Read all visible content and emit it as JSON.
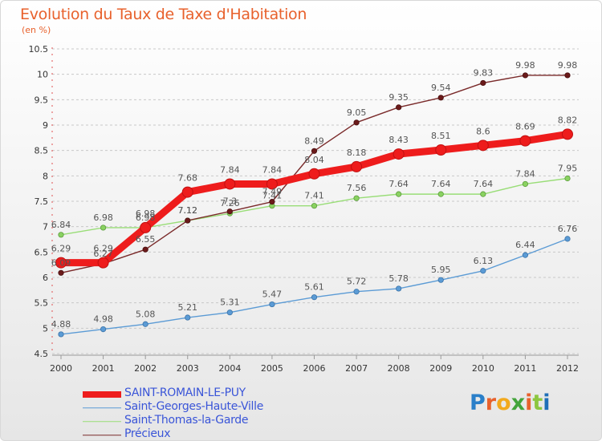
{
  "title": "Evolution du Taux de Taxe d'Habitation",
  "subtitle": "(en %)",
  "logo": {
    "text": "Proxiti",
    "letter_colors": [
      "#2a7fc9",
      "#e8612c",
      "#f2a91d",
      "#43a43b",
      "#e8612c",
      "#8cc63f",
      "#1f6fb8"
    ]
  },
  "chart_data": {
    "type": "line",
    "x": [
      "2000",
      "2001",
      "2002",
      "2003",
      "2004",
      "2005",
      "2006",
      "2007",
      "2008",
      "2009",
      "2010",
      "2011",
      "2012"
    ],
    "ylim": [
      4.5,
      10.5
    ],
    "yticks": [
      "4.5",
      "5",
      "5.5",
      "6",
      "6.5",
      "7",
      "7.5",
      "8",
      "8.5",
      "9",
      "9.5",
      "10",
      "10.5"
    ],
    "grid": "horizontal dashed",
    "legend_position": "bottom-left",
    "series": [
      {
        "name": "SAINT-ROMAIN-LE-PUY",
        "color": "#ee1c1c",
        "values": [
          6.29,
          6.29,
          6.98,
          7.68,
          7.84,
          7.84,
          8.04,
          8.18,
          8.43,
          8.51,
          8.6,
          8.69,
          8.82
        ],
        "labels": [
          "6.29",
          "6.29",
          "6.98",
          "7.68",
          "7.84",
          "7.84",
          "8.04",
          "8.18",
          "8.43",
          "8.51",
          "8.6",
          "8.69",
          "8.82"
        ]
      },
      {
        "name": "Saint-Georges-Haute-Ville",
        "color": "#5b9bd5",
        "values": [
          4.88,
          4.98,
          5.08,
          5.21,
          5.31,
          5.47,
          5.61,
          5.72,
          5.78,
          5.95,
          6.13,
          6.44,
          6.76
        ],
        "labels": [
          "4.88",
          "4.98",
          "5.08",
          "5.21",
          "5.31",
          "5.47",
          "5.61",
          "5.72",
          "5.78",
          "5.95",
          "6.13",
          "6.44",
          "6.76"
        ]
      },
      {
        "name": "Saint-Thomas-la-Garde",
        "color": "#99dd77",
        "values": [
          6.84,
          6.98,
          6.98,
          7.12,
          7.26,
          7.41,
          7.41,
          7.56,
          7.64,
          7.64,
          7.64,
          7.84,
          7.95
        ],
        "labels": [
          "6.84",
          "6.98",
          "6.98",
          "7.12",
          "7.26",
          "7.41",
          "7.41",
          "7.56",
          "7.64",
          "7.64",
          "7.64",
          "7.84",
          "7.95"
        ]
      },
      {
        "name": "Précieux",
        "color": "#7a2a2a",
        "values": [
          6.09,
          6.27,
          6.55,
          7.12,
          7.3,
          7.49,
          8.49,
          9.05,
          9.35,
          9.54,
          9.83,
          9.98,
          9.98
        ],
        "labels": [
          "6.09",
          "6.27",
          "6.55",
          "7.12",
          "7.3",
          "7.49",
          "8.49",
          "9.05",
          "9.35",
          "9.54",
          "9.83",
          "9.98",
          "9.98"
        ]
      }
    ]
  }
}
